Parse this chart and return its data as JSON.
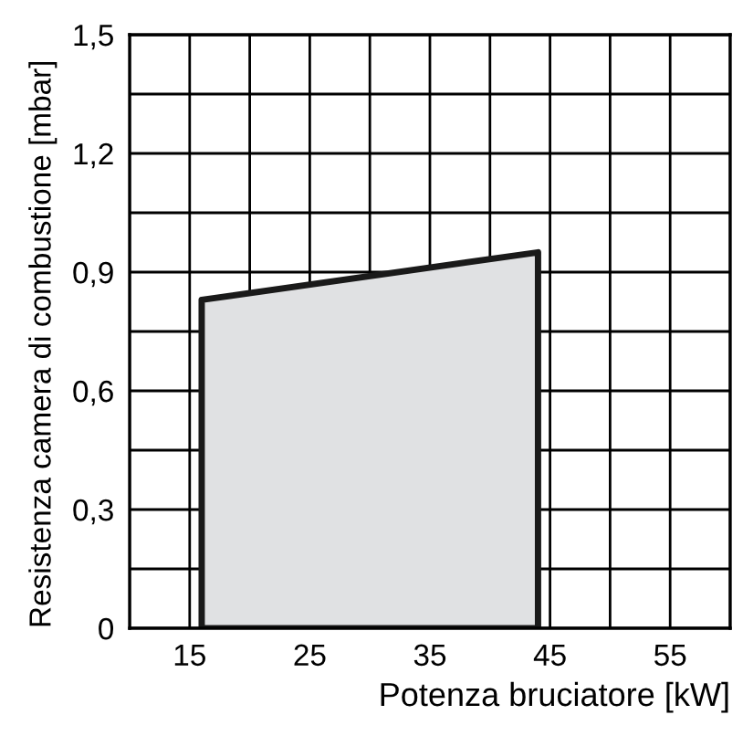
{
  "chart_data": {
    "type": "area",
    "xlabel": "Potenza bruciatore [kW]",
    "ylabel": "Resistenza camera di combustione [mbar]",
    "series": [
      {
        "x": [
          16,
          44
        ],
        "values": [
          0.83,
          0.95
        ],
        "color": "#e0e1e3"
      }
    ],
    "xlim": [
      10,
      60
    ],
    "xticks": [
      {
        "value": 10,
        "label": null
      },
      15,
      {
        "value": 20,
        "label": null
      },
      25,
      {
        "value": 30,
        "label": null
      },
      35,
      {
        "value": 40,
        "label": null
      },
      45,
      {
        "value": 50,
        "label": null
      },
      55,
      {
        "value": 60,
        "label": null
      }
    ],
    "ylim": [
      0,
      1.5
    ],
    "yticks": [
      {
        "value": 0,
        "label": "0"
      },
      {
        "value": 0.15,
        "label": null
      },
      {
        "value": 0.3,
        "label": "0,3"
      },
      {
        "value": 0.45,
        "label": null
      },
      {
        "value": 0.6,
        "label": "0,6"
      },
      {
        "value": 0.75,
        "label": null
      },
      {
        "value": 0.9,
        "label": "0,9"
      },
      {
        "value": 1.05,
        "label": null
      },
      {
        "value": 1.2,
        "label": "1,2"
      },
      {
        "value": 1.35,
        "label": null
      },
      {
        "value": 1.5,
        "label": "1,5"
      }
    ],
    "grid": true
  }
}
